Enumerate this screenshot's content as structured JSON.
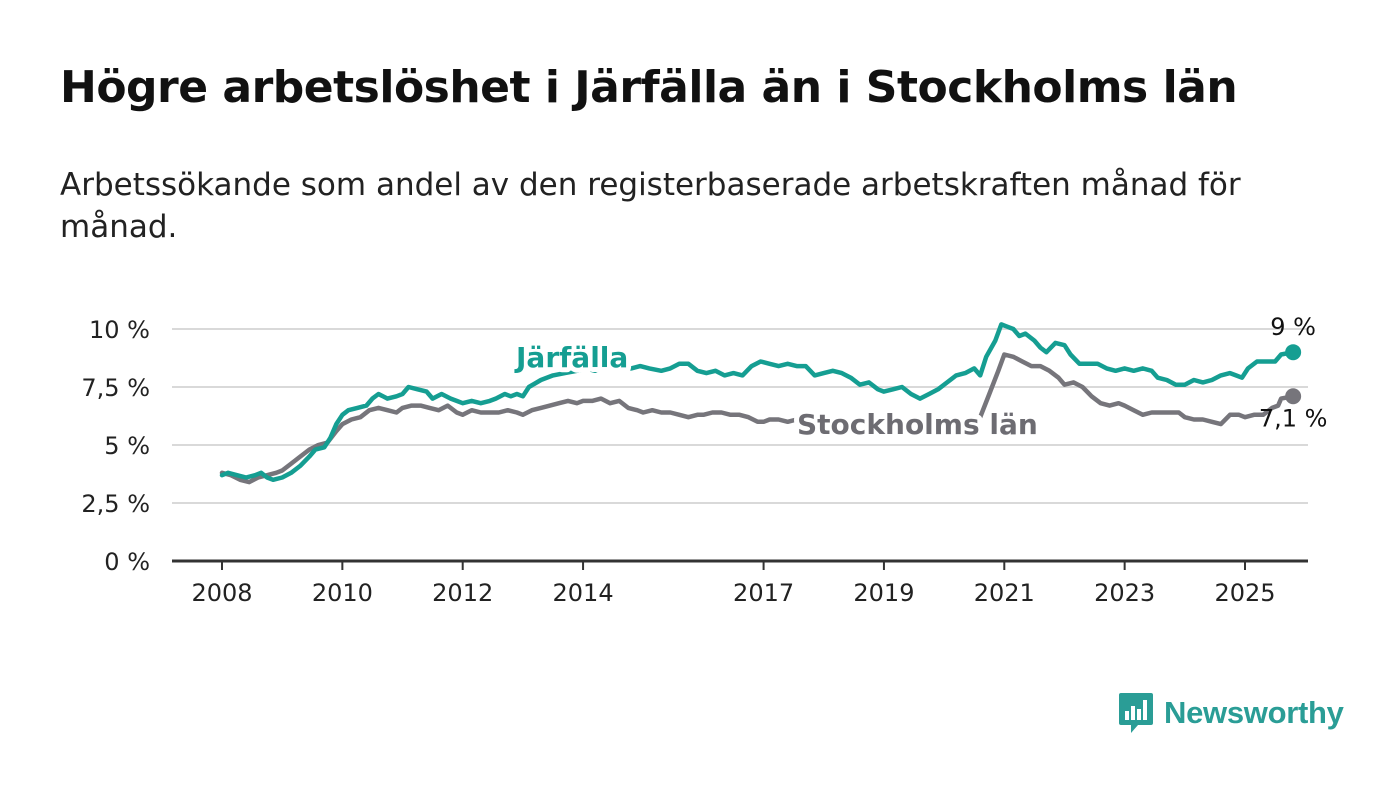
{
  "title": "Högre arbetslöshet i Järfälla än i Stockholms län",
  "subtitle": "Arbetssökande som andel av den registerbaserade arbetskraften månad för månad.",
  "brand": {
    "name": "Newsworthy",
    "icon": "bar-chart-speech-bubble-icon",
    "color": "#2a9d96"
  },
  "chart_data": {
    "type": "line",
    "yunit": "%",
    "ylim": [
      0,
      10
    ],
    "xlim": [
      2008,
      2025.9
    ],
    "grid": true,
    "yticks": [
      {
        "value": 0,
        "label": "0 %"
      },
      {
        "value": 2.5,
        "label": "2,5 %"
      },
      {
        "value": 5,
        "label": "5 %"
      },
      {
        "value": 7.5,
        "label": "7,5 %"
      },
      {
        "value": 10,
        "label": "10 %"
      }
    ],
    "xticks": [
      {
        "value": 2008,
        "label": "2008"
      },
      {
        "value": 2010,
        "label": "2010"
      },
      {
        "value": 2012,
        "label": "2012"
      },
      {
        "value": 2014,
        "label": "2014"
      },
      {
        "value": 2017,
        "label": "2017"
      },
      {
        "value": 2019,
        "label": "2019"
      },
      {
        "value": 2021,
        "label": "2021"
      },
      {
        "value": 2023,
        "label": "2023"
      },
      {
        "value": 2025,
        "label": "2025"
      }
    ],
    "series": [
      {
        "name": "Järfälla",
        "color": "#159e92",
        "end_label": "9 %",
        "points": [
          [
            2008.0,
            3.7
          ],
          [
            2008.1,
            3.8
          ],
          [
            2008.25,
            3.7
          ],
          [
            2008.4,
            3.6
          ],
          [
            2008.55,
            3.7
          ],
          [
            2008.65,
            3.8
          ],
          [
            2008.75,
            3.6
          ],
          [
            2008.85,
            3.5
          ],
          [
            2009.0,
            3.6
          ],
          [
            2009.15,
            3.8
          ],
          [
            2009.3,
            4.1
          ],
          [
            2009.45,
            4.5
          ],
          [
            2009.55,
            4.8
          ],
          [
            2009.7,
            4.9
          ],
          [
            2009.8,
            5.3
          ],
          [
            2009.9,
            5.9
          ],
          [
            2010.0,
            6.3
          ],
          [
            2010.1,
            6.5
          ],
          [
            2010.25,
            6.6
          ],
          [
            2010.4,
            6.7
          ],
          [
            2010.5,
            7.0
          ],
          [
            2010.6,
            7.2
          ],
          [
            2010.75,
            7.0
          ],
          [
            2010.9,
            7.1
          ],
          [
            2011.0,
            7.2
          ],
          [
            2011.1,
            7.5
          ],
          [
            2011.25,
            7.4
          ],
          [
            2011.4,
            7.3
          ],
          [
            2011.5,
            7.0
          ],
          [
            2011.65,
            7.2
          ],
          [
            2011.8,
            7.0
          ],
          [
            2011.9,
            6.9
          ],
          [
            2012.0,
            6.8
          ],
          [
            2012.15,
            6.9
          ],
          [
            2012.3,
            6.8
          ],
          [
            2012.45,
            6.9
          ],
          [
            2012.55,
            7.0
          ],
          [
            2012.7,
            7.2
          ],
          [
            2012.8,
            7.1
          ],
          [
            2012.9,
            7.2
          ],
          [
            2013.0,
            7.1
          ],
          [
            2013.1,
            7.5
          ],
          [
            2013.3,
            7.8
          ],
          [
            2013.5,
            8.0
          ],
          [
            2013.7,
            8.1
          ],
          [
            2013.9,
            8.2
          ],
          [
            2014.05,
            8.3
          ],
          [
            2014.2,
            8.2
          ],
          [
            2014.35,
            8.4
          ],
          [
            2014.5,
            8.3
          ],
          [
            2014.65,
            8.4
          ],
          [
            2014.8,
            8.3
          ],
          [
            2014.95,
            8.4
          ],
          [
            2015.1,
            8.3
          ],
          [
            2015.3,
            8.2
          ],
          [
            2015.45,
            8.3
          ],
          [
            2015.6,
            8.5
          ],
          [
            2015.75,
            8.5
          ],
          [
            2015.9,
            8.2
          ],
          [
            2016.05,
            8.1
          ],
          [
            2016.2,
            8.2
          ],
          [
            2016.35,
            8.0
          ],
          [
            2016.5,
            8.1
          ],
          [
            2016.65,
            8.0
          ],
          [
            2016.8,
            8.4
          ],
          [
            2016.95,
            8.6
          ],
          [
            2017.1,
            8.5
          ],
          [
            2017.25,
            8.4
          ],
          [
            2017.4,
            8.5
          ],
          [
            2017.55,
            8.4
          ],
          [
            2017.7,
            8.4
          ],
          [
            2017.85,
            8.0
          ],
          [
            2018.0,
            8.1
          ],
          [
            2018.15,
            8.2
          ],
          [
            2018.3,
            8.1
          ],
          [
            2018.45,
            7.9
          ],
          [
            2018.6,
            7.6
          ],
          [
            2018.75,
            7.7
          ],
          [
            2018.9,
            7.4
          ],
          [
            2019.0,
            7.3
          ],
          [
            2019.15,
            7.4
          ],
          [
            2019.3,
            7.5
          ],
          [
            2019.45,
            7.2
          ],
          [
            2019.6,
            7.0
          ],
          [
            2019.75,
            7.2
          ],
          [
            2019.9,
            7.4
          ],
          [
            2020.05,
            7.7
          ],
          [
            2020.2,
            8.0
          ],
          [
            2020.35,
            8.1
          ],
          [
            2020.5,
            8.3
          ],
          [
            2020.6,
            8.0
          ],
          [
            2020.7,
            8.8
          ],
          [
            2020.85,
            9.5
          ],
          [
            2020.95,
            10.2
          ],
          [
            2021.05,
            10.1
          ],
          [
            2021.15,
            10.0
          ],
          [
            2021.25,
            9.7
          ],
          [
            2021.35,
            9.8
          ],
          [
            2021.5,
            9.5
          ],
          [
            2021.6,
            9.2
          ],
          [
            2021.7,
            9.0
          ],
          [
            2021.85,
            9.4
          ],
          [
            2022.0,
            9.3
          ],
          [
            2022.1,
            8.9
          ],
          [
            2022.25,
            8.5
          ],
          [
            2022.4,
            8.5
          ],
          [
            2022.55,
            8.5
          ],
          [
            2022.7,
            8.3
          ],
          [
            2022.85,
            8.2
          ],
          [
            2023.0,
            8.3
          ],
          [
            2023.15,
            8.2
          ],
          [
            2023.3,
            8.3
          ],
          [
            2023.45,
            8.2
          ],
          [
            2023.55,
            7.9
          ],
          [
            2023.7,
            7.8
          ],
          [
            2023.85,
            7.6
          ],
          [
            2024.0,
            7.6
          ],
          [
            2024.15,
            7.8
          ],
          [
            2024.3,
            7.7
          ],
          [
            2024.45,
            7.8
          ],
          [
            2024.6,
            8.0
          ],
          [
            2024.75,
            8.1
          ],
          [
            2024.85,
            8.0
          ],
          [
            2024.95,
            7.9
          ],
          [
            2025.05,
            8.3
          ],
          [
            2025.2,
            8.6
          ],
          [
            2025.35,
            8.6
          ],
          [
            2025.5,
            8.6
          ],
          [
            2025.6,
            8.9
          ],
          [
            2025.8,
            9.0
          ]
        ]
      },
      {
        "name": "Stockholms län",
        "color": "#76757b",
        "end_label": "7,1 %",
        "points": [
          [
            2008.0,
            3.8
          ],
          [
            2008.15,
            3.7
          ],
          [
            2008.3,
            3.5
          ],
          [
            2008.45,
            3.4
          ],
          [
            2008.6,
            3.6
          ],
          [
            2008.75,
            3.7
          ],
          [
            2008.9,
            3.8
          ],
          [
            2009.0,
            3.9
          ],
          [
            2009.15,
            4.2
          ],
          [
            2009.3,
            4.5
          ],
          [
            2009.45,
            4.8
          ],
          [
            2009.6,
            5.0
          ],
          [
            2009.75,
            5.1
          ],
          [
            2009.9,
            5.6
          ],
          [
            2010.0,
            5.9
          ],
          [
            2010.15,
            6.1
          ],
          [
            2010.3,
            6.2
          ],
          [
            2010.45,
            6.5
          ],
          [
            2010.6,
            6.6
          ],
          [
            2010.75,
            6.5
          ],
          [
            2010.9,
            6.4
          ],
          [
            2011.0,
            6.6
          ],
          [
            2011.15,
            6.7
          ],
          [
            2011.3,
            6.7
          ],
          [
            2011.45,
            6.6
          ],
          [
            2011.6,
            6.5
          ],
          [
            2011.75,
            6.7
          ],
          [
            2011.9,
            6.4
          ],
          [
            2012.0,
            6.3
          ],
          [
            2012.15,
            6.5
          ],
          [
            2012.3,
            6.4
          ],
          [
            2012.45,
            6.4
          ],
          [
            2012.6,
            6.4
          ],
          [
            2012.75,
            6.5
          ],
          [
            2012.9,
            6.4
          ],
          [
            2013.0,
            6.3
          ],
          [
            2013.15,
            6.5
          ],
          [
            2013.3,
            6.6
          ],
          [
            2013.45,
            6.7
          ],
          [
            2013.6,
            6.8
          ],
          [
            2013.75,
            6.9
          ],
          [
            2013.9,
            6.8
          ],
          [
            2014.0,
            6.9
          ],
          [
            2014.15,
            6.9
          ],
          [
            2014.3,
            7.0
          ],
          [
            2014.45,
            6.8
          ],
          [
            2014.6,
            6.9
          ],
          [
            2014.75,
            6.6
          ],
          [
            2014.9,
            6.5
          ],
          [
            2015.0,
            6.4
          ],
          [
            2015.15,
            6.5
          ],
          [
            2015.3,
            6.4
          ],
          [
            2015.45,
            6.4
          ],
          [
            2015.6,
            6.3
          ],
          [
            2015.75,
            6.2
          ],
          [
            2015.9,
            6.3
          ],
          [
            2016.0,
            6.3
          ],
          [
            2016.15,
            6.4
          ],
          [
            2016.3,
            6.4
          ],
          [
            2016.45,
            6.3
          ],
          [
            2016.6,
            6.3
          ],
          [
            2016.75,
            6.2
          ],
          [
            2016.9,
            6.0
          ],
          [
            2017.0,
            6.0
          ],
          [
            2017.1,
            6.1
          ],
          [
            2017.25,
            6.1
          ],
          [
            2017.4,
            6.0
          ],
          [
            2017.55,
            6.1
          ],
          [
            2017.7,
            6.0
          ],
          [
            2017.85,
            6.0
          ],
          [
            2018.0,
            5.9
          ],
          [
            2018.15,
            6.0
          ],
          [
            2018.3,
            5.9
          ],
          [
            2018.45,
            5.8
          ],
          [
            2018.6,
            5.8
          ],
          [
            2018.75,
            5.6
          ],
          [
            2018.9,
            5.6
          ],
          [
            2019.0,
            5.5
          ],
          [
            2019.15,
            5.6
          ],
          [
            2019.3,
            5.6
          ],
          [
            2019.45,
            5.5
          ],
          [
            2019.6,
            5.6
          ],
          [
            2019.75,
            5.6
          ],
          [
            2019.9,
            5.7
          ],
          [
            2020.0,
            5.8
          ],
          [
            2020.15,
            5.9
          ],
          [
            2020.3,
            6.0
          ],
          [
            2020.45,
            6.1
          ],
          [
            2020.6,
            6.2
          ],
          [
            2020.75,
            7.2
          ],
          [
            2020.9,
            8.2
          ],
          [
            2021.0,
            8.9
          ],
          [
            2021.15,
            8.8
          ],
          [
            2021.3,
            8.6
          ],
          [
            2021.45,
            8.4
          ],
          [
            2021.6,
            8.4
          ],
          [
            2021.75,
            8.2
          ],
          [
            2021.9,
            7.9
          ],
          [
            2022.0,
            7.6
          ],
          [
            2022.15,
            7.7
          ],
          [
            2022.3,
            7.5
          ],
          [
            2022.45,
            7.1
          ],
          [
            2022.6,
            6.8
          ],
          [
            2022.75,
            6.7
          ],
          [
            2022.9,
            6.8
          ],
          [
            2023.0,
            6.7
          ],
          [
            2023.15,
            6.5
          ],
          [
            2023.3,
            6.3
          ],
          [
            2023.45,
            6.4
          ],
          [
            2023.6,
            6.4
          ],
          [
            2023.75,
            6.4
          ],
          [
            2023.9,
            6.4
          ],
          [
            2024.0,
            6.2
          ],
          [
            2024.15,
            6.1
          ],
          [
            2024.3,
            6.1
          ],
          [
            2024.45,
            6.0
          ],
          [
            2024.6,
            5.9
          ],
          [
            2024.75,
            6.3
          ],
          [
            2024.9,
            6.3
          ],
          [
            2025.0,
            6.2
          ],
          [
            2025.15,
            6.3
          ],
          [
            2025.3,
            6.3
          ],
          [
            2025.45,
            6.6
          ],
          [
            2025.55,
            6.7
          ],
          [
            2025.6,
            7.0
          ],
          [
            2025.8,
            7.1
          ]
        ]
      }
    ]
  }
}
